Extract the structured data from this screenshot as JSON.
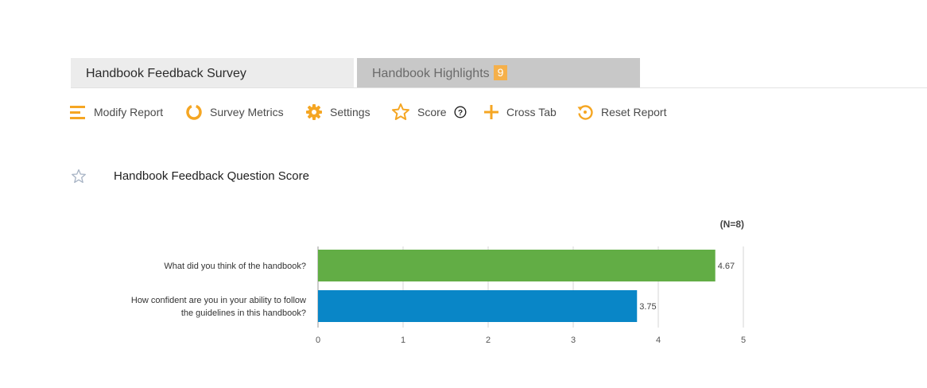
{
  "tabs": [
    {
      "label": "Handbook Feedback Survey"
    },
    {
      "label": "Handbook Highlights",
      "badge": "9"
    }
  ],
  "toolbar": {
    "modify_report": "Modify Report",
    "survey_metrics": "Survey Metrics",
    "settings": "Settings",
    "score": "Score",
    "cross_tab": "Cross Tab",
    "reset_report": "Reset Report"
  },
  "colors": {
    "accent": "#f5a623",
    "bar_green": "#62ad45",
    "bar_blue": "#0986c7"
  },
  "report": {
    "title": "Handbook Feedback Question Score",
    "n_label": "(N=8)"
  },
  "chart_data": {
    "type": "bar",
    "orientation": "horizontal",
    "categories": [
      [
        "What did you think of the handbook?"
      ],
      [
        "How confident are you in your ability to follow",
        "the guidelines in this handbook?"
      ]
    ],
    "values": [
      4.67,
      3.75
    ],
    "value_labels": [
      "4.67",
      "3.75"
    ],
    "bar_colors": [
      "#62ad45",
      "#0986c7"
    ],
    "xlim": [
      0,
      5
    ],
    "xticks": [
      0,
      1,
      2,
      3,
      4,
      5
    ],
    "grid": true
  }
}
